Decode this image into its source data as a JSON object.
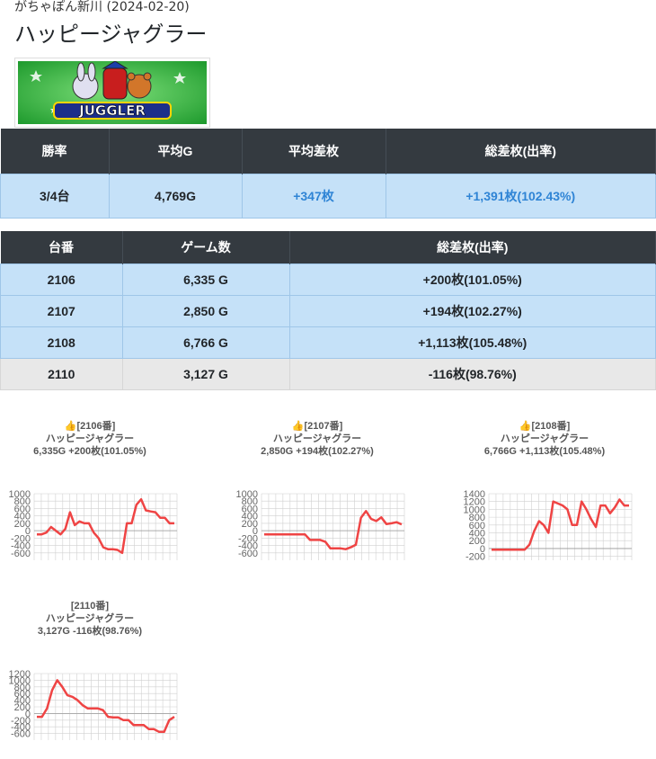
{
  "header": {
    "store": "がちゃぽん新川 (2024-02-20)",
    "machine": "ハッピージャグラー",
    "banner_text": "JUGGLER"
  },
  "summary": {
    "headers": [
      "勝率",
      "平均G",
      "平均差枚",
      "総差枚(出率)"
    ],
    "values": [
      "3/4台",
      "4,769G",
      "+347枚",
      "+1,391枚(102.43%)"
    ]
  },
  "detail": {
    "headers": [
      "台番",
      "ゲーム数",
      "総差枚(出率)"
    ],
    "rows": [
      [
        "2106",
        "6,335 G",
        "+200枚(101.05%)"
      ],
      [
        "2107",
        "2,850 G",
        "+194枚(102.27%)"
      ],
      [
        "2108",
        "6,766 G",
        "+1,113枚(105.48%)"
      ],
      [
        "2110",
        "3,127 G",
        "-116枚(98.76%)"
      ]
    ]
  },
  "colors": {
    "line": "#ef4444",
    "header_bg": "#343a40",
    "row_blue": "#c5e1f8",
    "row_gray": "#e8e8e8",
    "accent_blue": "#2f84d5"
  },
  "chart_data": [
    {
      "type": "line",
      "title": [
        "👍[2106番]",
        "ハッピージャグラー",
        "6,335G +200枚(101.05%)"
      ],
      "yticks": [
        1000,
        800,
        600,
        400,
        200,
        0,
        -200,
        -400,
        -600
      ],
      "ylim": [
        -800,
        1000
      ],
      "grid": true,
      "values": [
        -100,
        -100,
        -50,
        100,
        0,
        -100,
        50,
        500,
        150,
        250,
        200,
        200,
        -50,
        -200,
        -450,
        -500,
        -500,
        -520,
        -600,
        200,
        200,
        700,
        850,
        550,
        520,
        500,
        350,
        350,
        200,
        200
      ]
    },
    {
      "type": "line",
      "title": [
        "👍[2107番]",
        "ハッピージャグラー",
        "2,850G +194枚(102.27%)"
      ],
      "yticks": [
        1000,
        800,
        600,
        400,
        200,
        0,
        -200,
        -400,
        -600
      ],
      "ylim": [
        -800,
        1000
      ],
      "grid": true,
      "values": [
        -100,
        -100,
        -100,
        -100,
        -100,
        -100,
        -100,
        -100,
        -100,
        -250,
        -250,
        -250,
        -300,
        -480,
        -480,
        -480,
        -500,
        -450,
        -380,
        350,
        530,
        320,
        260,
        360,
        180,
        200,
        230,
        170
      ]
    },
    {
      "type": "line",
      "title": [
        "👍[2108番]",
        "ハッピージャグラー",
        "6,766G +1,113枚(105.48%)"
      ],
      "yticks": [
        1400,
        1200,
        1000,
        800,
        600,
        400,
        200,
        0,
        -200
      ],
      "ylim": [
        -300,
        1400
      ],
      "grid": true,
      "values": [
        -30,
        -30,
        -30,
        -30,
        -30,
        -30,
        -30,
        -30,
        100,
        450,
        700,
        600,
        400,
        1200,
        1150,
        1100,
        1000,
        600,
        600,
        1200,
        1000,
        750,
        550,
        1100,
        1100,
        900,
        1050,
        1250,
        1100,
        1100
      ]
    },
    {
      "type": "line",
      "title": [
        "[2110番]",
        "ハッピージャグラー",
        "3,127G -116枚(98.76%)"
      ],
      "yticks": [
        1200,
        1000,
        800,
        600,
        400,
        200,
        0,
        -200,
        -400,
        -600
      ],
      "ylim": [
        -800,
        1200
      ],
      "grid": true,
      "values": [
        -100,
        -100,
        150,
        700,
        1000,
        800,
        550,
        500,
        400,
        250,
        150,
        150,
        150,
        100,
        -100,
        -120,
        -120,
        -200,
        -200,
        -350,
        -350,
        -350,
        -470,
        -470,
        -550,
        -550,
        -200,
        -100
      ]
    }
  ]
}
